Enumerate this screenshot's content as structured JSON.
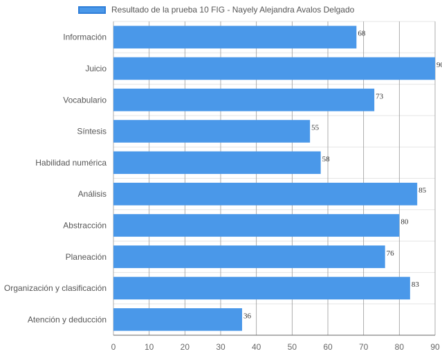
{
  "chart_data": {
    "type": "bar",
    "orientation": "horizontal",
    "categories": [
      "Información",
      "Juicio",
      "Vocabulario",
      "Síntesis",
      "Habilidad numérica",
      "Análisis",
      "Abstracción",
      "Planeación",
      "Organización y clasificación",
      "Atención y deducción"
    ],
    "series": [
      {
        "name": "Resultado de la prueba 10 FIG - Nayely Alejandra Avalos Delgado",
        "values": [
          68,
          90,
          73,
          55,
          58,
          85,
          80,
          76,
          83,
          36
        ]
      }
    ],
    "xlim": [
      0,
      90
    ],
    "xticks": [
      0,
      10,
      20,
      30,
      40,
      50,
      60,
      70,
      80,
      90
    ],
    "grid": true,
    "legend_position": "top",
    "data_labels": true,
    "colors": {
      "bar": "#4a98e9",
      "bar_border": "#2f7ed8",
      "grid": "#e5e5e5",
      "grid_major": "#999999"
    }
  }
}
